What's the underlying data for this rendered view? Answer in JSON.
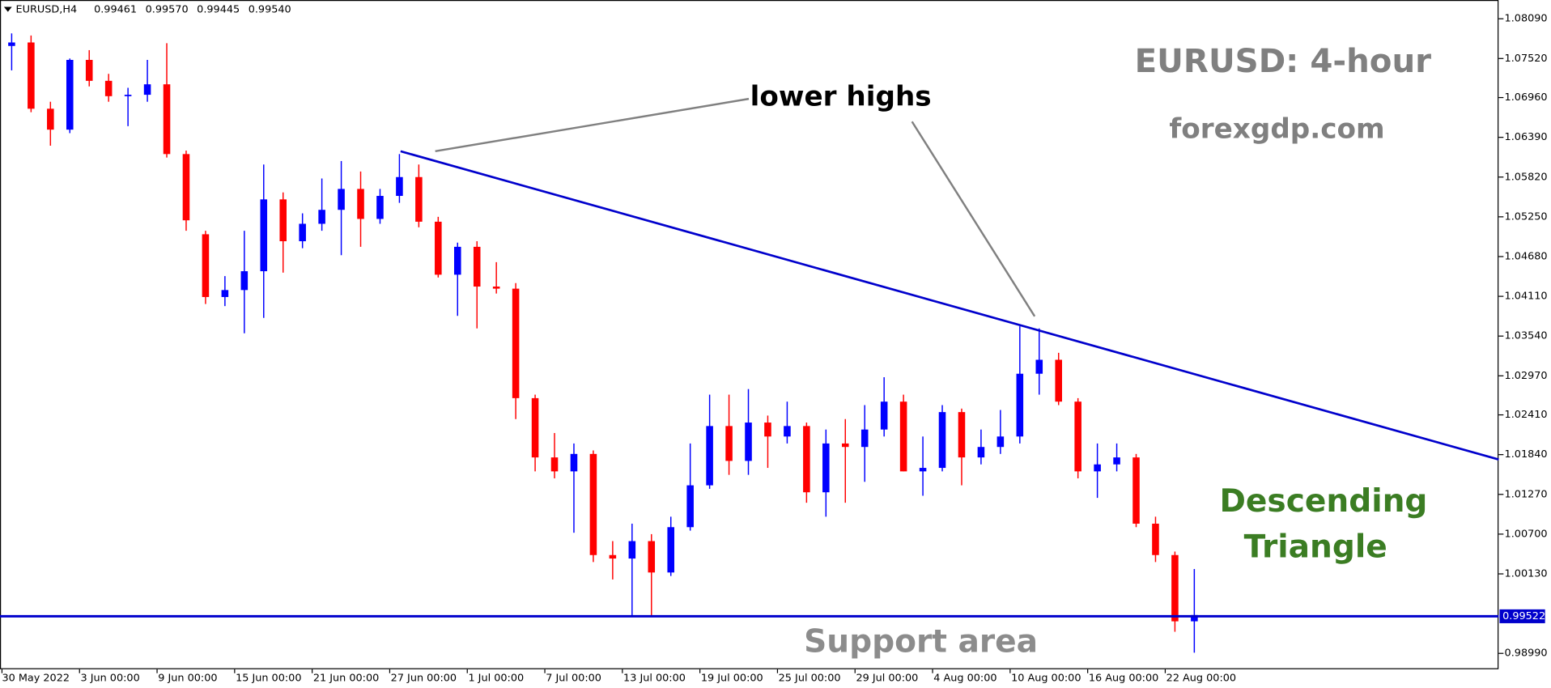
{
  "chart_data": {
    "type": "candlestick",
    "header": {
      "symbol": "EURUSD,H4",
      "ohlc": [
        "0.99461",
        "0.99570",
        "0.99445",
        "0.99540"
      ]
    },
    "title": "EURUSD: 4-hour",
    "subtitle": "forexgdp.com",
    "annotations": {
      "lower_highs": "lower highs",
      "pattern": [
        "Descending",
        "Triangle"
      ],
      "support": "Support area"
    },
    "categories": [
      "30 May 2022",
      null,
      null,
      null,
      "3 Jun 00:00",
      null,
      null,
      null,
      "9 Jun 00:00",
      null,
      null,
      null,
      "15 Jun 00:00",
      null,
      null,
      null,
      "21 Jun 00:00",
      null,
      null,
      null,
      "27 Jun 00:00",
      null,
      null,
      null,
      "1 Jul 00:00",
      null,
      null,
      null,
      "7 Jul 00:00",
      null,
      null,
      null,
      "13 Jul 00:00",
      null,
      null,
      null,
      "19 Jul 00:00",
      null,
      null,
      null,
      "25 Jul 00:00",
      null,
      null,
      null,
      "29 Jul 00:00",
      null,
      null,
      null,
      "4 Aug 00:00",
      null,
      null,
      null,
      "10 Aug 00:00",
      null,
      null,
      null,
      "16 Aug 00:00",
      null,
      null,
      null,
      "22 Aug 00:00",
      null
    ],
    "open": [
      1.077,
      1.0775,
      1.068,
      1.065,
      1.075,
      1.072,
      1.0698,
      1.07,
      1.0715,
      1.0615,
      1.05,
      1.041,
      1.042,
      1.0447,
      1.055,
      1.049,
      1.0515,
      1.0535,
      1.0565,
      1.0522,
      1.0555,
      1.0582,
      1.0518,
      1.0442,
      1.0482,
      1.0425,
      1.0422,
      1.0265,
      1.018,
      1.016,
      1.0185,
      1.004,
      1.0035,
      1.006,
      1.0015,
      1.008,
      1.014,
      1.0225,
      1.0175,
      1.023,
      1.021,
      1.0225,
      1.013,
      1.02,
      1.0195,
      1.022,
      1.026,
      1.016,
      1.0165,
      1.0245,
      1.018,
      1.0195,
      1.021,
      1.03,
      1.032,
      1.026,
      1.016,
      1.017,
      1.018,
      1.0085,
      1.004,
      0.9945
    ],
    "high": [
      1.0788,
      1.0785,
      1.069,
      1.0752,
      1.0764,
      1.073,
      1.071,
      1.075,
      1.0774,
      1.062,
      1.0505,
      1.044,
      1.0505,
      1.06,
      1.056,
      1.053,
      1.058,
      1.0605,
      1.059,
      1.0565,
      1.0615,
      1.06,
      1.0525,
      1.0488,
      1.049,
      1.046,
      1.043,
      1.027,
      1.0215,
      1.02,
      1.019,
      1.006,
      1.0085,
      1.007,
      1.0095,
      1.02,
      1.027,
      1.027,
      1.0278,
      1.024,
      1.026,
      1.023,
      1.022,
      1.0235,
      1.0255,
      1.0295,
      1.027,
      1.021,
      1.0255,
      1.025,
      1.022,
      1.0248,
      1.0368,
      1.0365,
      1.033,
      1.0265,
      1.02,
      1.02,
      1.0185,
      1.0095,
      1.0045,
      1.002
    ],
    "low": [
      1.0735,
      1.0675,
      1.0627,
      1.0645,
      1.0712,
      1.069,
      1.0655,
      1.069,
      1.061,
      1.0505,
      1.04,
      1.0397,
      1.0358,
      1.038,
      1.0445,
      1.048,
      1.0505,
      1.047,
      1.0482,
      1.0515,
      1.0545,
      1.051,
      1.0438,
      1.0383,
      1.0365,
      1.0415,
      1.0235,
      1.016,
      1.015,
      1.0072,
      1.003,
      1.0005,
      0.9952,
      0.9952,
      1.001,
      1.0075,
      1.0135,
      1.0155,
      1.0155,
      1.0165,
      1.02,
      1.0115,
      1.0095,
      1.0115,
      1.0145,
      1.021,
      1.016,
      1.0125,
      1.016,
      1.014,
      1.017,
      1.0185,
      1.02,
      1.027,
      1.0255,
      1.015,
      1.0122,
      1.016,
      1.008,
      1.003,
      0.993,
      0.99
    ],
    "close": [
      1.0775,
      1.068,
      1.065,
      1.075,
      1.072,
      1.0698,
      1.07,
      1.0715,
      1.0615,
      1.052,
      1.041,
      1.042,
      1.0447,
      1.055,
      1.049,
      1.0515,
      1.0535,
      1.0565,
      1.0522,
      1.0555,
      1.0582,
      1.0518,
      1.0442,
      1.0482,
      1.0425,
      1.0422,
      1.0265,
      1.018,
      1.016,
      1.0185,
      1.004,
      1.0035,
      1.006,
      1.0015,
      1.008,
      1.014,
      1.0225,
      1.0175,
      1.023,
      1.021,
      1.0225,
      1.013,
      1.02,
      1.0195,
      1.022,
      1.026,
      1.016,
      1.0165,
      1.0245,
      1.018,
      1.0195,
      1.021,
      1.03,
      1.032,
      1.026,
      1.016,
      1.017,
      1.018,
      1.0085,
      1.004,
      0.9945,
      0.9954
    ],
    "colors": {
      "up": "#0000ff",
      "down": "#ff0000",
      "line": "#0000cc"
    },
    "ylim": [
      0.98763,
      1.08359
    ],
    "yticks": [
      {
        "value": 1.0809,
        "label": "1.08090"
      },
      {
        "value": 1.0752,
        "label": "1.07520"
      },
      {
        "value": 1.0696,
        "label": "1.06960"
      },
      {
        "value": 1.0639,
        "label": "1.06390"
      },
      {
        "value": 1.0582,
        "label": "1.05820"
      },
      {
        "value": 1.0525,
        "label": "1.05250"
      },
      {
        "value": 1.0468,
        "label": "1.04680"
      },
      {
        "value": 1.0411,
        "label": "1.04110"
      },
      {
        "value": 1.0354,
        "label": "1.03540"
      },
      {
        "value": 1.0297,
        "label": "1.02970"
      },
      {
        "value": 1.0241,
        "label": "1.02410"
      },
      {
        "value": 1.0184,
        "label": "1.01840"
      },
      {
        "value": 1.0127,
        "label": "1.01270"
      },
      {
        "value": 1.007,
        "label": "1.00700"
      },
      {
        "value": 1.0013,
        "label": "1.00130"
      },
      {
        "value": 0.9899,
        "label": "0.98990"
      }
    ],
    "last_price": {
      "value": 0.99522,
      "label": "0.99522"
    },
    "trendline": {
      "x": [
        20.56,
        77.2
      ],
      "y": [
        1.0619,
        1.0177
      ]
    }
  }
}
